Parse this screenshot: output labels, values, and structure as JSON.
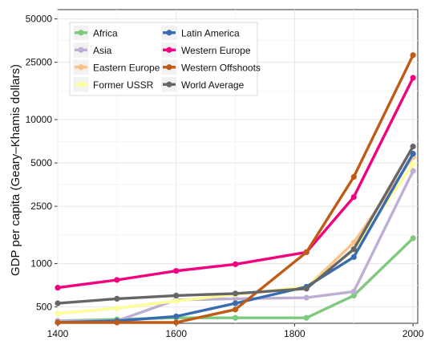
{
  "chart_data": {
    "type": "line",
    "title": "",
    "xlabel": "",
    "ylabel": "GDP per capita (Geary–Khamis dollars)",
    "x_scale": "linear",
    "y_scale": "log",
    "xlim": [
      1400,
      2008
    ],
    "ylim": [
      385,
      58000
    ],
    "x_ticks": [
      1400,
      1600,
      1800,
      2000
    ],
    "y_ticks": [
      500,
      1000,
      2500,
      5000,
      10000,
      25000,
      50000
    ],
    "y_tick_labels": [
      "500",
      "1000",
      "2500",
      "5000",
      "10000",
      "25000",
      "50000"
    ],
    "grid": true,
    "legend_position": "top-left",
    "x": [
      1400,
      1500,
      1600,
      1700,
      1820,
      1900,
      2000
    ],
    "series": [
      {
        "name": "Africa",
        "color": "#7fc97f",
        "values": [
          400,
          410,
          420,
          420,
          420,
          600,
          1500
        ]
      },
      {
        "name": "Asia",
        "color": "#beaed4",
        "values": [
          400,
          400,
          560,
          570,
          580,
          640,
          4400
        ]
      },
      {
        "name": "Eastern Europe",
        "color": "#fdc086",
        "values": [
          450,
          490,
          550,
          610,
          680,
          1400,
          5500
        ]
      },
      {
        "name": "Former USSR",
        "color": "#ffff99",
        "values": [
          450,
          490,
          550,
          610,
          690,
          1240,
          4900
        ]
      },
      {
        "name": "Latin America",
        "color": "#386cb0",
        "values": [
          390,
          400,
          430,
          530,
          690,
          1110,
          5800
        ]
      },
      {
        "name": "Western Europe",
        "color": "#f0027f",
        "values": [
          680,
          770,
          890,
          990,
          1200,
          2900,
          19500
        ]
      },
      {
        "name": "Western Offshoots",
        "color": "#bf5b17",
        "values": [
          390,
          390,
          390,
          480,
          1200,
          4000,
          28000
        ]
      },
      {
        "name": "World Average",
        "color": "#666666",
        "values": [
          530,
          570,
          600,
          620,
          670,
          1260,
          6500
        ]
      }
    ]
  }
}
